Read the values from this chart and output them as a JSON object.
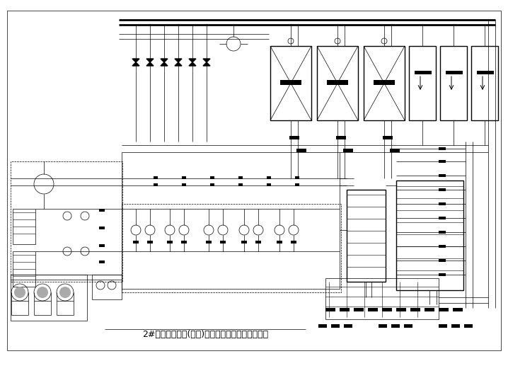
{
  "title": "2#制冷换热机房(公建)空调冷热水制备系统原理图",
  "bg_color": "#ffffff",
  "line_color": "#000000",
  "title_fontsize": 9,
  "fig_width": 7.18,
  "fig_height": 5.34,
  "dpi": 100
}
